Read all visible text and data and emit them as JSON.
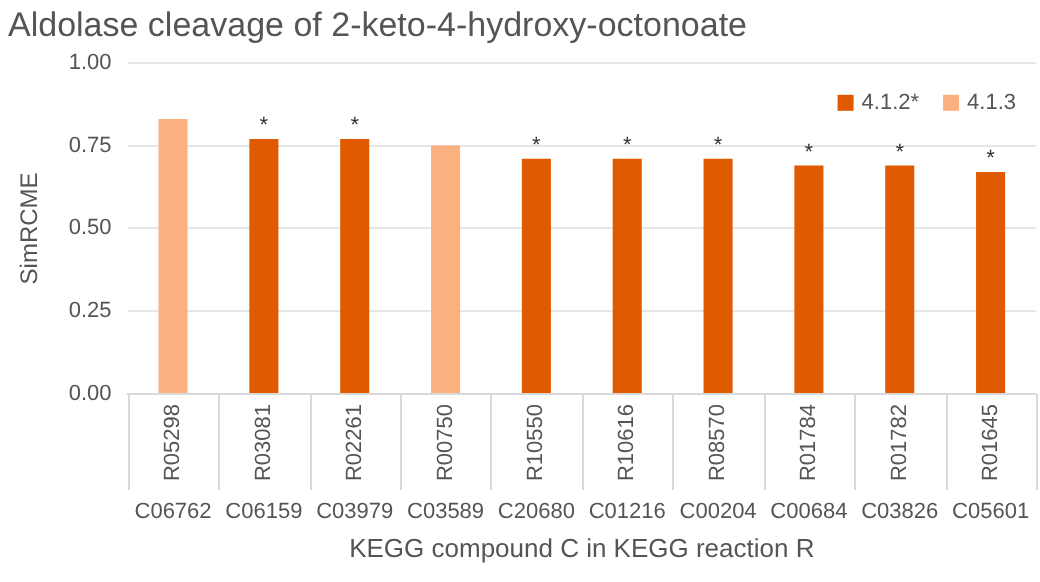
{
  "chart_data": {
    "type": "bar",
    "title": "Aldolase cleavage of 2-keto-4-hydroxy-octonoate",
    "xlabel": "KEGG compound C in KEGG reaction R",
    "ylabel": "SimRCME",
    "categories": [
      "R05298\nC06762",
      "R03081\nC06159",
      "R02261\nC03979",
      "R00750\nC03589",
      "R10550\nC20680",
      "R10616\nC01216",
      "R08570\nC00204",
      "R01784\nC00684",
      "R01782\nC03826",
      "R01645\nC05601"
    ],
    "series": [
      {
        "name": "4.1.2*",
        "color": "#e05a00",
        "values": [
          null,
          0.77,
          0.77,
          null,
          0.71,
          0.71,
          0.71,
          0.69,
          0.69,
          0.67
        ],
        "value_labels": [
          null,
          "*",
          "*",
          null,
          "*",
          "*",
          "*",
          "*",
          "*",
          "*"
        ]
      },
      {
        "name": "4.1.3",
        "color": "#fbb07f",
        "values": [
          0.83,
          null,
          null,
          0.75,
          null,
          null,
          null,
          null,
          null,
          null
        ]
      }
    ],
    "ylim": [
      0,
      1
    ],
    "yticks": [
      {
        "value": 0,
        "label": "0.00"
      },
      {
        "value": 0.25,
        "label": "0.25"
      },
      {
        "value": 0.5,
        "label": "0.50"
      },
      {
        "value": 0.75,
        "label": "0.75"
      },
      {
        "value": 1,
        "label": "1.00"
      }
    ],
    "grid": "y",
    "legend": "top right"
  }
}
